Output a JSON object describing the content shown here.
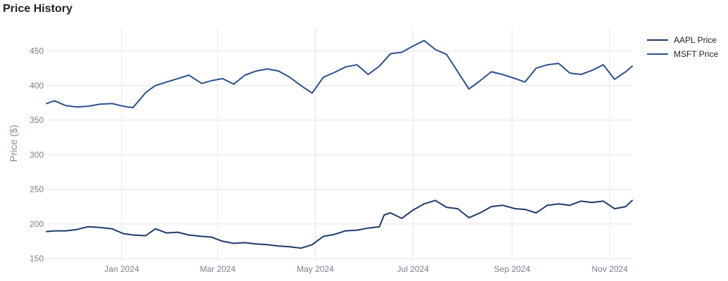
{
  "chart_data": {
    "type": "line",
    "title": "Price History",
    "xlabel": "",
    "ylabel": "Price ($)",
    "ylim": [
      148,
      483
    ],
    "xlim": [
      "2023-11-15",
      "2024-11-15"
    ],
    "grid": true,
    "legend_position": "top-right",
    "y_ticks": [
      150,
      200,
      250,
      300,
      350,
      400,
      450
    ],
    "x_ticks": [
      {
        "date": "2024-01-01",
        "label": "Jan 2024"
      },
      {
        "date": "2024-03-01",
        "label": "Mar 2024"
      },
      {
        "date": "2024-05-01",
        "label": "May 2024"
      },
      {
        "date": "2024-07-01",
        "label": "Jul 2024"
      },
      {
        "date": "2024-09-01",
        "label": "Sep 2024"
      },
      {
        "date": "2024-11-01",
        "label": "Nov 2024"
      }
    ],
    "series": [
      {
        "name": "AAPL Price",
        "color": "#1f3a68",
        "points": [
          [
            "2023-11-15",
            189
          ],
          [
            "2023-11-20",
            190
          ],
          [
            "2023-11-27",
            190
          ],
          [
            "2023-12-04",
            192
          ],
          [
            "2023-12-11",
            196
          ],
          [
            "2023-12-18",
            195
          ],
          [
            "2023-12-26",
            193
          ],
          [
            "2024-01-02",
            186
          ],
          [
            "2024-01-08",
            184
          ],
          [
            "2024-01-16",
            183
          ],
          [
            "2024-01-22",
            193
          ],
          [
            "2024-01-29",
            187
          ],
          [
            "2024-02-05",
            188
          ],
          [
            "2024-02-12",
            184
          ],
          [
            "2024-02-20",
            182
          ],
          [
            "2024-02-26",
            181
          ],
          [
            "2024-03-04",
            175
          ],
          [
            "2024-03-11",
            172
          ],
          [
            "2024-03-18",
            173
          ],
          [
            "2024-03-25",
            171
          ],
          [
            "2024-04-01",
            170
          ],
          [
            "2024-04-08",
            168
          ],
          [
            "2024-04-15",
            167
          ],
          [
            "2024-04-22",
            165
          ],
          [
            "2024-04-29",
            170
          ],
          [
            "2024-05-06",
            182
          ],
          [
            "2024-05-13",
            185
          ],
          [
            "2024-05-20",
            190
          ],
          [
            "2024-05-27",
            191
          ],
          [
            "2024-06-03",
            194
          ],
          [
            "2024-06-10",
            196
          ],
          [
            "2024-06-13",
            213
          ],
          [
            "2024-06-17",
            216
          ],
          [
            "2024-06-24",
            208
          ],
          [
            "2024-07-01",
            220
          ],
          [
            "2024-07-08",
            229
          ],
          [
            "2024-07-15",
            234
          ],
          [
            "2024-07-22",
            224
          ],
          [
            "2024-07-29",
            222
          ],
          [
            "2024-08-05",
            209
          ],
          [
            "2024-08-12",
            216
          ],
          [
            "2024-08-19",
            225
          ],
          [
            "2024-08-26",
            227
          ],
          [
            "2024-09-03",
            222
          ],
          [
            "2024-09-09",
            221
          ],
          [
            "2024-09-16",
            216
          ],
          [
            "2024-09-23",
            227
          ],
          [
            "2024-09-30",
            229
          ],
          [
            "2024-10-07",
            227
          ],
          [
            "2024-10-14",
            233
          ],
          [
            "2024-10-21",
            231
          ],
          [
            "2024-10-28",
            233
          ],
          [
            "2024-11-04",
            222
          ],
          [
            "2024-11-11",
            225
          ],
          [
            "2024-11-15",
            234
          ]
        ]
      },
      {
        "name": "MSFT Price",
        "color": "#2c4f8f",
        "points": [
          [
            "2023-11-15",
            374
          ],
          [
            "2023-11-20",
            378
          ],
          [
            "2023-11-27",
            371
          ],
          [
            "2023-12-04",
            369
          ],
          [
            "2023-12-11",
            370
          ],
          [
            "2023-12-18",
            373
          ],
          [
            "2023-12-26",
            374
          ],
          [
            "2024-01-02",
            370
          ],
          [
            "2024-01-08",
            368
          ],
          [
            "2024-01-16",
            390
          ],
          [
            "2024-01-22",
            400
          ],
          [
            "2024-01-29",
            405
          ],
          [
            "2024-02-05",
            410
          ],
          [
            "2024-02-12",
            415
          ],
          [
            "2024-02-20",
            403
          ],
          [
            "2024-02-26",
            407
          ],
          [
            "2024-03-04",
            410
          ],
          [
            "2024-03-11",
            402
          ],
          [
            "2024-03-18",
            415
          ],
          [
            "2024-03-25",
            421
          ],
          [
            "2024-04-01",
            424
          ],
          [
            "2024-04-08",
            421
          ],
          [
            "2024-04-15",
            412
          ],
          [
            "2024-04-22",
            400
          ],
          [
            "2024-04-29",
            389
          ],
          [
            "2024-05-06",
            412
          ],
          [
            "2024-05-13",
            419
          ],
          [
            "2024-05-20",
            427
          ],
          [
            "2024-05-27",
            430
          ],
          [
            "2024-06-03",
            416
          ],
          [
            "2024-06-10",
            428
          ],
          [
            "2024-06-17",
            446
          ],
          [
            "2024-06-24",
            448
          ],
          [
            "2024-07-01",
            457
          ],
          [
            "2024-07-08",
            465
          ],
          [
            "2024-07-15",
            452
          ],
          [
            "2024-07-22",
            445
          ],
          [
            "2024-07-29",
            420
          ],
          [
            "2024-08-05",
            395
          ],
          [
            "2024-08-12",
            407
          ],
          [
            "2024-08-19",
            420
          ],
          [
            "2024-08-26",
            416
          ],
          [
            "2024-09-03",
            410
          ],
          [
            "2024-09-09",
            405
          ],
          [
            "2024-09-16",
            425
          ],
          [
            "2024-09-23",
            430
          ],
          [
            "2024-09-30",
            432
          ],
          [
            "2024-10-07",
            418
          ],
          [
            "2024-10-14",
            416
          ],
          [
            "2024-10-21",
            422
          ],
          [
            "2024-10-28",
            430
          ],
          [
            "2024-11-04",
            409
          ],
          [
            "2024-11-11",
            420
          ],
          [
            "2024-11-15",
            428
          ]
        ]
      }
    ]
  }
}
